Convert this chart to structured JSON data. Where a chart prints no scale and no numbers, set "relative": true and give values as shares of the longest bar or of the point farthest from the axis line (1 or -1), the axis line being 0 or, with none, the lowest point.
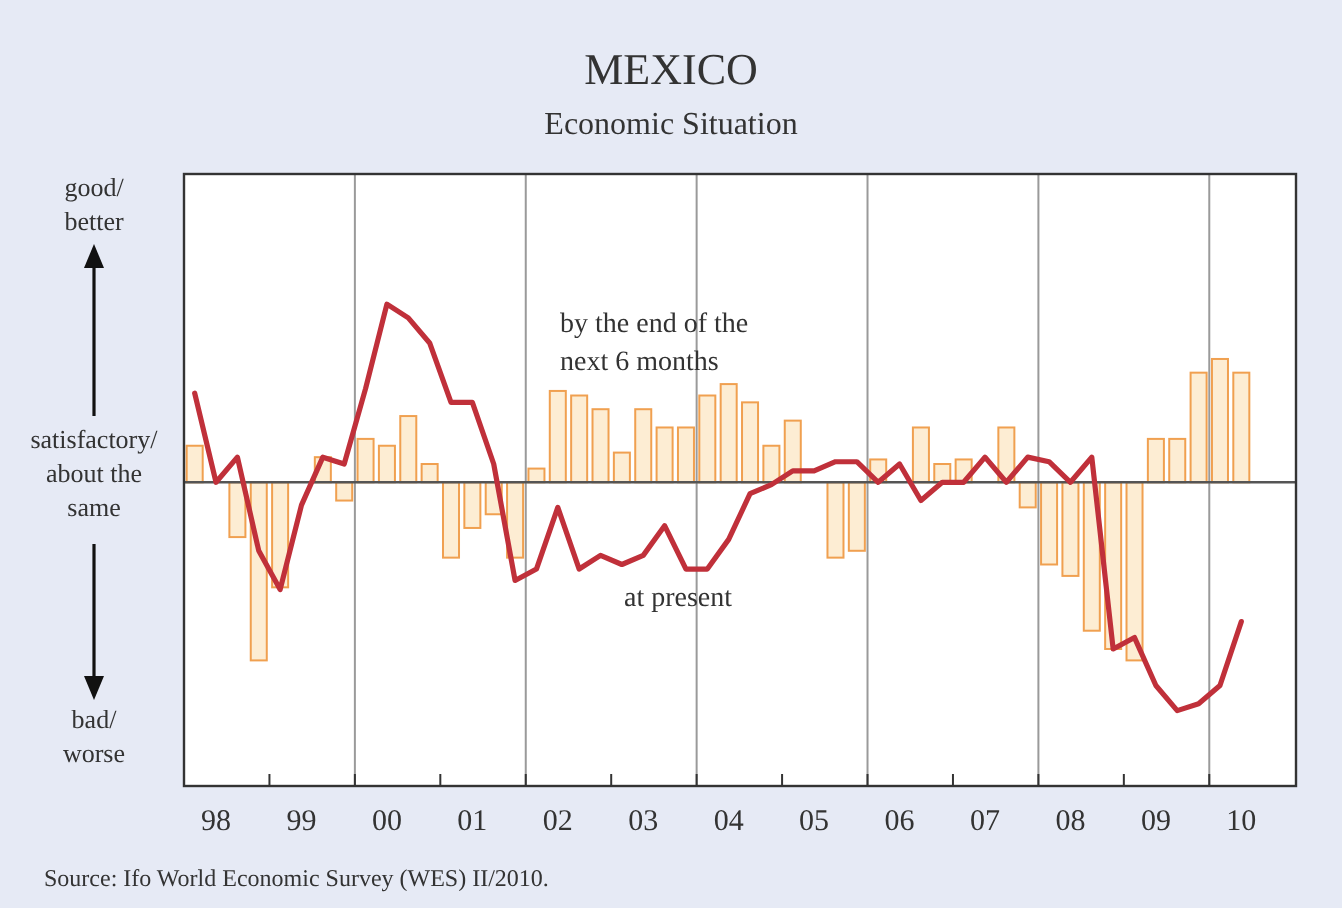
{
  "chart_data": {
    "type": "bar",
    "title": "MEXICO",
    "subtitle": "Economic Situation",
    "relative": true,
    "grid": "x",
    "categories": [
      null,
      "98",
      null,
      null,
      null,
      "99",
      null,
      null,
      null,
      "00",
      null,
      null,
      null,
      "01",
      null,
      null,
      null,
      "02",
      null,
      null,
      null,
      "03",
      null,
      null,
      null,
      "04",
      null,
      null,
      null,
      "05",
      null,
      null,
      null,
      "06",
      null,
      null,
      null,
      "07",
      null,
      null,
      null,
      "08",
      null,
      null,
      null,
      "09",
      null,
      null,
      null,
      "10"
    ],
    "series": [
      {
        "name": "by the end of the next 6 months",
        "color": "#f0a050",
        "values": [
          0.16,
          0,
          -0.24,
          -0.78,
          -0.46,
          0,
          0.11,
          -0.08,
          0.19,
          0.16,
          0.29,
          0.08,
          -0.33,
          -0.2,
          -0.14,
          -0.33,
          0.06,
          0.4,
          0.38,
          0.32,
          0.13,
          0.32,
          0.24,
          0.24,
          0.38,
          0.43,
          0.35,
          0.16,
          0.27,
          0,
          -0.33,
          -0.3,
          0.1,
          0,
          0.24,
          0.08,
          0.1,
          0,
          0.24,
          -0.11,
          -0.36,
          -0.41,
          -0.65,
          -0.73,
          -0.78,
          0.19,
          0.19,
          0.48,
          0.54,
          0.48
        ]
      },
      {
        "name": "at present",
        "type": "line",
        "color": "#c0303a",
        "values": [
          0.39,
          0,
          0.11,
          -0.3,
          -0.47,
          -0.1,
          0.11,
          0.08,
          0.41,
          0.78,
          0.72,
          0.61,
          0.35,
          0.35,
          0.08,
          -0.43,
          -0.38,
          -0.11,
          -0.38,
          -0.32,
          -0.36,
          -0.32,
          -0.19,
          -0.38,
          -0.38,
          -0.25,
          -0.05,
          -0.01,
          0.05,
          0.05,
          0.09,
          0.09,
          0,
          0.08,
          -0.08,
          0,
          0,
          0.11,
          0,
          0.11,
          0.09,
          0,
          0.11,
          -0.73,
          -0.68,
          -0.89,
          -1,
          -0.97,
          -0.89,
          -0.61
        ]
      }
    ],
    "annotations": [
      "good/ better",
      "satisfactory/ about the same",
      "bad/ worse",
      "Source: Ifo World Economic Survey (WES) II/2010."
    ]
  }
}
